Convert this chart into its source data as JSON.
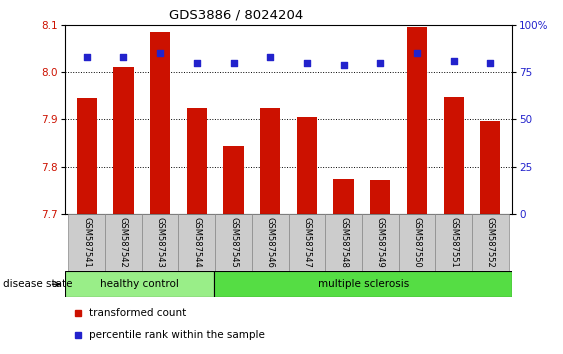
{
  "title": "GDS3886 / 8024204",
  "samples": [
    "GSM587541",
    "GSM587542",
    "GSM587543",
    "GSM587544",
    "GSM587545",
    "GSM587546",
    "GSM587547",
    "GSM587548",
    "GSM587549",
    "GSM587550",
    "GSM587551",
    "GSM587552"
  ],
  "bar_values": [
    7.945,
    8.01,
    8.085,
    7.925,
    7.845,
    7.925,
    7.905,
    7.775,
    7.773,
    8.095,
    7.947,
    7.897
  ],
  "percentile_values": [
    83,
    83,
    85,
    80,
    80,
    83,
    80,
    79,
    80,
    85,
    81,
    80
  ],
  "ylim_left": [
    7.7,
    8.1
  ],
  "ylim_right": [
    0,
    100
  ],
  "yticks_left": [
    7.7,
    7.8,
    7.9,
    8.0,
    8.1
  ],
  "yticks_right": [
    0,
    25,
    50,
    75,
    100
  ],
  "bar_color": "#cc1100",
  "dot_color": "#2222cc",
  "healthy_color": "#99ee88",
  "ms_color": "#55dd44",
  "healthy_samples": 4,
  "ms_samples": 8,
  "healthy_label": "healthy control",
  "ms_label": "multiple sclerosis",
  "legend_bar": "transformed count",
  "legend_dot": "percentile rank within the sample",
  "disease_label": "disease state",
  "left_tick_color": "#cc1100",
  "right_tick_color": "#2222cc"
}
